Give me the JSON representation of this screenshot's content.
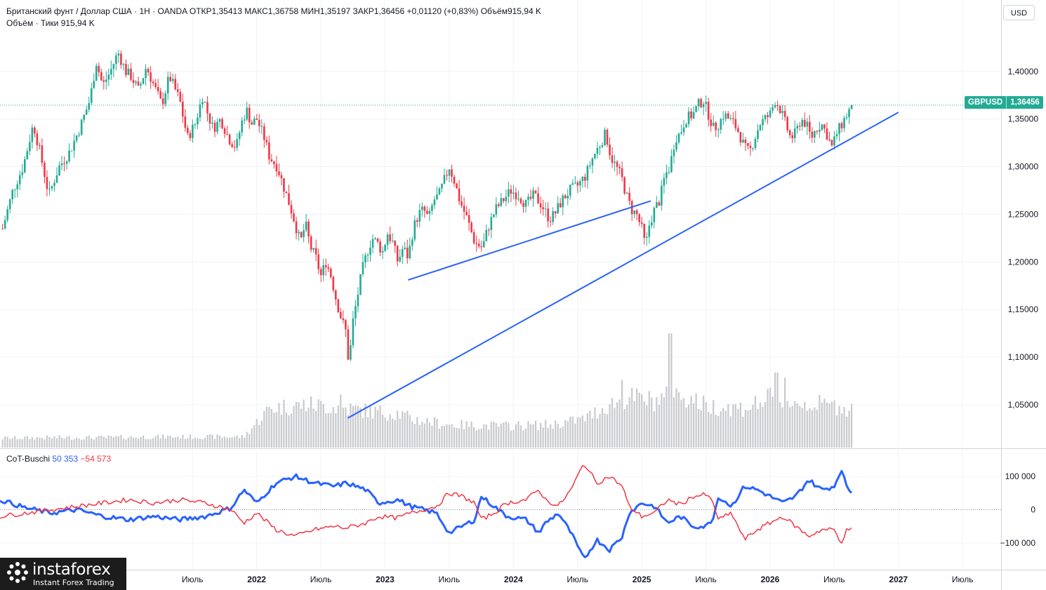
{
  "legend": {
    "title": "Британский фунт / Доллар США · 1Н · OANDA",
    "open_label": "ОТКР",
    "open": "1,35413",
    "high_label": "МАКС",
    "high": "1,36758",
    "low_label": "МИН",
    "low": "1,35197",
    "close_label": "ЗАКР",
    "close": "1,36456",
    "change": "+0,01120 (+0,83%)",
    "volume_label": "Объём",
    "volume": "915,94 K",
    "vol_ticks_label": "Объём · Тики",
    "vol_ticks": "915,94 K"
  },
  "cot_legend": {
    "name": "CoT-Buschi",
    "blue": "50 353",
    "red": "−54 573"
  },
  "currency_button": "USD",
  "price_badge": {
    "symbol": "GBPUSD",
    "value": "1,36456"
  },
  "logo": {
    "name": "instaforex",
    "tagline": "Instant Forex Trading"
  },
  "colors": {
    "up": "#22ab94",
    "down": "#f23645",
    "volume": "#c8c9cc",
    "trend": "#2962ff",
    "cot_blue": "#2962ff",
    "cot_red": "#f23645",
    "grid": "#f0f3fa"
  },
  "chart_data": {
    "type": "candlestick",
    "symbol": "GBPUSD",
    "y_axis_ticks": [
      "1,40000",
      "1,35000",
      "1,30000",
      "1,25000",
      "1,20000",
      "1,15000",
      "1,10000",
      "1,05000"
    ],
    "y_axis_values": [
      1.4,
      1.35,
      1.3,
      1.25,
      1.2,
      1.15,
      1.1,
      1.05
    ],
    "ylim": [
      1.005,
      1.475
    ],
    "x_axis_labels": [
      "Июль",
      "2022",
      "Июль",
      "2023",
      "Июль",
      "2024",
      "Июль",
      "2025",
      "Июль",
      "2026",
      "Июль",
      "2027",
      "Июль"
    ],
    "x_axis_years": [
      2021.5,
      2022.0,
      2022.5,
      2023.0,
      2023.5,
      2024.0,
      2024.5,
      2025.0,
      2025.5,
      2026.0,
      2026.5,
      2027.0,
      2027.5
    ],
    "xlim": [
      2020.0,
      2027.8
    ],
    "last_price": 1.36456,
    "close_path": [
      [
        2020.02,
        1.235
      ],
      [
        2020.1,
        1.275
      ],
      [
        2020.18,
        1.3
      ],
      [
        2020.26,
        1.345
      ],
      [
        2020.32,
        1.31
      ],
      [
        2020.38,
        1.27
      ],
      [
        2020.46,
        1.3
      ],
      [
        2020.54,
        1.315
      ],
      [
        2020.62,
        1.34
      ],
      [
        2020.7,
        1.37
      ],
      [
        2020.75,
        1.41
      ],
      [
        2020.8,
        1.385
      ],
      [
        2020.86,
        1.4
      ],
      [
        2020.92,
        1.42
      ],
      [
        2020.98,
        1.4
      ],
      [
        2021.02,
        1.395
      ],
      [
        2021.08,
        1.38
      ],
      [
        2021.14,
        1.405
      ],
      [
        2021.2,
        1.385
      ],
      [
        2021.26,
        1.365
      ],
      [
        2021.32,
        1.395
      ],
      [
        2021.4,
        1.37
      ],
      [
        2021.46,
        1.33
      ],
      [
        2021.52,
        1.345
      ],
      [
        2021.58,
        1.375
      ],
      [
        2021.62,
        1.355
      ],
      [
        2021.66,
        1.34
      ],
      [
        2021.72,
        1.35
      ],
      [
        2021.78,
        1.33
      ],
      [
        2021.84,
        1.32
      ],
      [
        2021.88,
        1.345
      ],
      [
        2021.92,
        1.36
      ],
      [
        2021.96,
        1.345
      ],
      [
        2022.0,
        1.35
      ],
      [
        2022.06,
        1.33
      ],
      [
        2022.1,
        1.31
      ],
      [
        2022.16,
        1.3
      ],
      [
        2022.22,
        1.275
      ],
      [
        2022.28,
        1.25
      ],
      [
        2022.34,
        1.22
      ],
      [
        2022.38,
        1.24
      ],
      [
        2022.42,
        1.215
      ],
      [
        2022.46,
        1.205
      ],
      [
        2022.5,
        1.185
      ],
      [
        2022.54,
        1.2
      ],
      [
        2022.58,
        1.185
      ],
      [
        2022.62,
        1.16
      ],
      [
        2022.66,
        1.14
      ],
      [
        2022.7,
        1.125
      ],
      [
        2022.72,
        1.085
      ],
      [
        2022.74,
        1.13
      ],
      [
        2022.78,
        1.16
      ],
      [
        2022.82,
        1.19
      ],
      [
        2022.86,
        1.21
      ],
      [
        2022.9,
        1.225
      ],
      [
        2022.94,
        1.22
      ],
      [
        2022.98,
        1.21
      ],
      [
        2023.02,
        1.23
      ],
      [
        2023.06,
        1.22
      ],
      [
        2023.1,
        1.2
      ],
      [
        2023.14,
        1.215
      ],
      [
        2023.18,
        1.205
      ],
      [
        2023.22,
        1.235
      ],
      [
        2023.26,
        1.25
      ],
      [
        2023.3,
        1.255
      ],
      [
        2023.34,
        1.245
      ],
      [
        2023.38,
        1.265
      ],
      [
        2023.42,
        1.27
      ],
      [
        2023.46,
        1.285
      ],
      [
        2023.5,
        1.3
      ],
      [
        2023.54,
        1.285
      ],
      [
        2023.58,
        1.265
      ],
      [
        2023.64,
        1.245
      ],
      [
        2023.7,
        1.22
      ],
      [
        2023.76,
        1.215
      ],
      [
        2023.8,
        1.235
      ],
      [
        2023.86,
        1.255
      ],
      [
        2023.92,
        1.265
      ],
      [
        2023.98,
        1.275
      ],
      [
        2024.04,
        1.27
      ],
      [
        2024.1,
        1.26
      ],
      [
        2024.16,
        1.27
      ],
      [
        2024.22,
        1.26
      ],
      [
        2024.28,
        1.245
      ],
      [
        2024.32,
        1.25
      ],
      [
        2024.38,
        1.265
      ],
      [
        2024.44,
        1.275
      ],
      [
        2024.5,
        1.28
      ],
      [
        2024.56,
        1.29
      ],
      [
        2024.62,
        1.31
      ],
      [
        2024.68,
        1.325
      ],
      [
        2024.72,
        1.335
      ],
      [
        2024.76,
        1.31
      ],
      [
        2024.8,
        1.3
      ],
      [
        2024.84,
        1.29
      ],
      [
        2024.88,
        1.27
      ],
      [
        2024.92,
        1.255
      ],
      [
        2024.96,
        1.25
      ],
      [
        2025.0,
        1.235
      ],
      [
        2025.03,
        1.215
      ],
      [
        2025.06,
        1.24
      ],
      [
        2025.1,
        1.255
      ],
      [
        2025.14,
        1.265
      ],
      [
        2025.18,
        1.29
      ],
      [
        2025.22,
        1.3
      ],
      [
        2025.26,
        1.33
      ],
      [
        2025.3,
        1.335
      ],
      [
        2025.34,
        1.35
      ],
      [
        2025.4,
        1.355
      ],
      [
        2025.44,
        1.365
      ],
      [
        2025.48,
        1.37
      ],
      [
        2025.52,
        1.355
      ],
      [
        2025.56,
        1.34
      ],
      [
        2025.6,
        1.345
      ],
      [
        2025.64,
        1.355
      ],
      [
        2025.68,
        1.35
      ],
      [
        2025.72,
        1.345
      ],
      [
        2025.76,
        1.335
      ],
      [
        2025.8,
        1.32
      ],
      [
        2025.84,
        1.315
      ],
      [
        2025.88,
        1.33
      ],
      [
        2025.92,
        1.345
      ],
      [
        2025.96,
        1.35
      ],
      [
        2026.0,
        1.355
      ],
      [
        2026.04,
        1.37
      ],
      [
        2026.08,
        1.36
      ],
      [
        2026.12,
        1.345
      ],
      [
        2026.16,
        1.33
      ],
      [
        2026.2,
        1.335
      ],
      [
        2026.24,
        1.35
      ],
      [
        2026.28,
        1.345
      ],
      [
        2026.32,
        1.33
      ],
      [
        2026.36,
        1.34
      ],
      [
        2026.4,
        1.345
      ],
      [
        2026.44,
        1.335
      ],
      [
        2026.48,
        1.32
      ],
      [
        2026.52,
        1.335
      ],
      [
        2026.56,
        1.345
      ],
      [
        2026.6,
        1.355
      ],
      [
        2026.64,
        1.36456
      ]
    ],
    "volume_path": [
      [
        2020.0,
        13
      ],
      [
        2020.4,
        14
      ],
      [
        2020.8,
        14
      ],
      [
        2021.2,
        15
      ],
      [
        2021.6,
        15
      ],
      [
        2021.9,
        15
      ],
      [
        2022.1,
        55
      ],
      [
        2022.4,
        60
      ],
      [
        2022.7,
        55
      ],
      [
        2022.9,
        50
      ],
      [
        2023.1,
        48
      ],
      [
        2023.2,
        40
      ],
      [
        2023.5,
        32
      ],
      [
        2023.9,
        30
      ],
      [
        2024.3,
        32
      ],
      [
        2024.55,
        40
      ],
      [
        2024.75,
        60
      ],
      [
        2024.9,
        70
      ],
      [
        2025.1,
        65
      ],
      [
        2025.2,
        70
      ],
      [
        2025.3,
        75
      ],
      [
        2025.5,
        58
      ],
      [
        2025.8,
        55
      ],
      [
        2026.0,
        68
      ],
      [
        2026.2,
        62
      ],
      [
        2026.4,
        60
      ],
      [
        2026.64,
        55
      ]
    ],
    "volume_spikes": [
      [
        2022.65,
        72
      ],
      [
        2024.85,
        92
      ],
      [
        2025.22,
        155
      ],
      [
        2026.05,
        102
      ],
      [
        2026.12,
        95
      ]
    ],
    "volume_axis_max": 160,
    "trendlines": [
      {
        "from": [
          2022.71,
          1.036
        ],
        "to": [
          2027.0,
          1.357
        ]
      },
      {
        "from": [
          2023.18,
          1.181
        ],
        "to": [
          2025.07,
          1.264
        ]
      }
    ],
    "cot": {
      "ylim": [
        -180000,
        180000
      ],
      "y_axis_ticks": [
        "100 000",
        "0",
        "−100 000"
      ],
      "y_axis_values": [
        100000,
        0,
        -100000
      ],
      "series": [
        {
          "name": "blue",
          "color": "#2962ff",
          "points": [
            [
              2020.0,
              30000
            ],
            [
              2020.2,
              5000
            ],
            [
              2020.4,
              -10000
            ],
            [
              2020.6,
              0
            ],
            [
              2020.8,
              -20000
            ],
            [
              2021.0,
              -30000
            ],
            [
              2021.2,
              -20000
            ],
            [
              2021.4,
              -30000
            ],
            [
              2021.6,
              -20000
            ],
            [
              2021.8,
              5000
            ],
            [
              2021.9,
              60000
            ],
            [
              2022.0,
              20000
            ],
            [
              2022.15,
              80000
            ],
            [
              2022.3,
              100000
            ],
            [
              2022.45,
              80000
            ],
            [
              2022.6,
              70000
            ],
            [
              2022.7,
              80000
            ],
            [
              2022.85,
              60000
            ],
            [
              2022.95,
              20000
            ],
            [
              2023.1,
              30000
            ],
            [
              2023.2,
              10000
            ],
            [
              2023.4,
              -10000
            ],
            [
              2023.5,
              -70000
            ],
            [
              2023.6,
              -50000
            ],
            [
              2023.7,
              -30000
            ],
            [
              2023.75,
              40000
            ],
            [
              2023.85,
              10000
            ],
            [
              2023.95,
              -20000
            ],
            [
              2024.1,
              -30000
            ],
            [
              2024.2,
              -70000
            ],
            [
              2024.25,
              -40000
            ],
            [
              2024.35,
              -10000
            ],
            [
              2024.45,
              -70000
            ],
            [
              2024.55,
              -150000
            ],
            [
              2024.65,
              -90000
            ],
            [
              2024.75,
              -120000
            ],
            [
              2024.85,
              -80000
            ],
            [
              2024.9,
              -10000
            ],
            [
              2025.0,
              20000
            ],
            [
              2025.1,
              10000
            ],
            [
              2025.2,
              -40000
            ],
            [
              2025.3,
              -20000
            ],
            [
              2025.4,
              -50000
            ],
            [
              2025.5,
              -50000
            ],
            [
              2025.55,
              -30000
            ],
            [
              2025.6,
              40000
            ],
            [
              2025.7,
              10000
            ],
            [
              2025.8,
              70000
            ],
            [
              2025.9,
              60000
            ],
            [
              2026.0,
              40000
            ],
            [
              2026.1,
              20000
            ],
            [
              2026.2,
              40000
            ],
            [
              2026.3,
              90000
            ],
            [
              2026.4,
              60000
            ],
            [
              2026.5,
              70000
            ],
            [
              2026.55,
              120000
            ],
            [
              2026.6,
              70000
            ],
            [
              2026.64,
              50353
            ]
          ]
        },
        {
          "name": "red",
          "color": "#f23645",
          "points": [
            [
              2020.0,
              -20000
            ],
            [
              2020.2,
              -10000
            ],
            [
              2020.4,
              0
            ],
            [
              2020.6,
              10000
            ],
            [
              2020.8,
              20000
            ],
            [
              2021.0,
              30000
            ],
            [
              2021.2,
              20000
            ],
            [
              2021.4,
              30000
            ],
            [
              2021.6,
              20000
            ],
            [
              2021.8,
              0
            ],
            [
              2021.9,
              -40000
            ],
            [
              2022.0,
              -10000
            ],
            [
              2022.15,
              -60000
            ],
            [
              2022.3,
              -80000
            ],
            [
              2022.45,
              -60000
            ],
            [
              2022.6,
              -50000
            ],
            [
              2022.7,
              -55000
            ],
            [
              2022.85,
              -40000
            ],
            [
              2022.95,
              -20000
            ],
            [
              2023.1,
              -25000
            ],
            [
              2023.2,
              -10000
            ],
            [
              2023.4,
              10000
            ],
            [
              2023.5,
              50000
            ],
            [
              2023.6,
              40000
            ],
            [
              2023.7,
              20000
            ],
            [
              2023.75,
              -30000
            ],
            [
              2023.85,
              -10000
            ],
            [
              2023.95,
              20000
            ],
            [
              2024.1,
              30000
            ],
            [
              2024.2,
              60000
            ],
            [
              2024.25,
              30000
            ],
            [
              2024.35,
              10000
            ],
            [
              2024.45,
              60000
            ],
            [
              2024.55,
              140000
            ],
            [
              2024.65,
              80000
            ],
            [
              2024.75,
              100000
            ],
            [
              2024.85,
              70000
            ],
            [
              2024.9,
              10000
            ],
            [
              2025.0,
              -20000
            ],
            [
              2025.1,
              -10000
            ],
            [
              2025.2,
              30000
            ],
            [
              2025.3,
              15000
            ],
            [
              2025.4,
              40000
            ],
            [
              2025.5,
              45000
            ],
            [
              2025.55,
              25000
            ],
            [
              2025.6,
              -30000
            ],
            [
              2025.7,
              -10000
            ],
            [
              2025.8,
              -90000
            ],
            [
              2025.9,
              -60000
            ],
            [
              2026.0,
              -40000
            ],
            [
              2026.1,
              -20000
            ],
            [
              2026.2,
              -50000
            ],
            [
              2026.3,
              -80000
            ],
            [
              2026.4,
              -60000
            ],
            [
              2026.5,
              -60000
            ],
            [
              2026.55,
              -100000
            ],
            [
              2026.6,
              -60000
            ],
            [
              2026.64,
              -54573
            ]
          ]
        }
      ]
    }
  }
}
